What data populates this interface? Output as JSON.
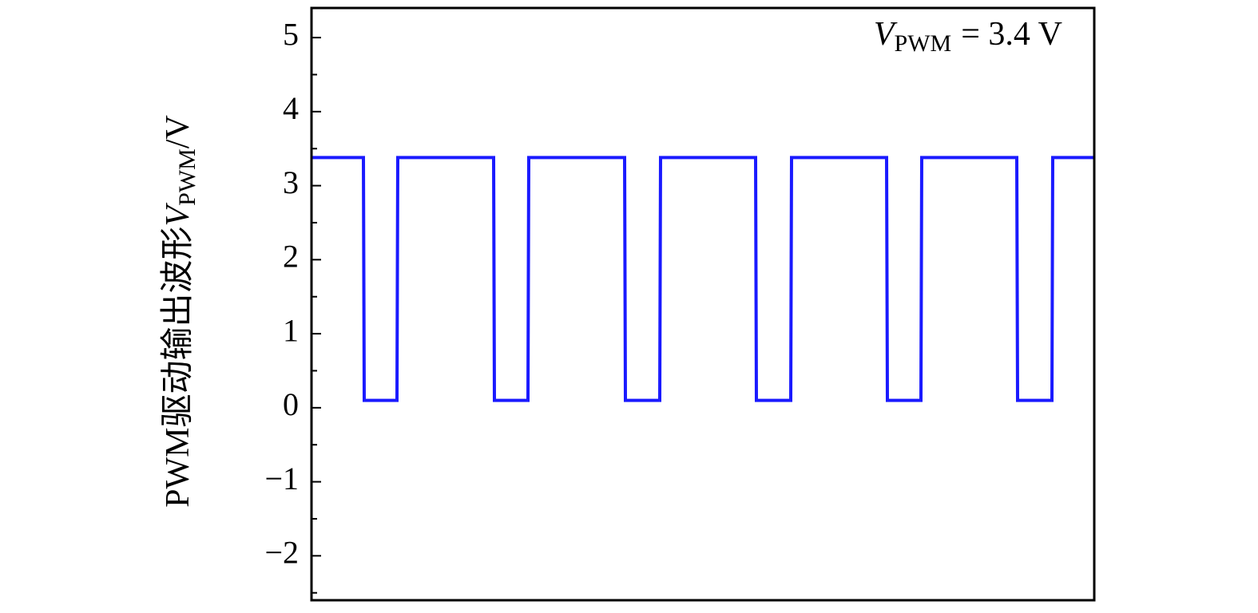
{
  "chart_data": {
    "type": "line",
    "y_label": {
      "text": "PWM驱动输出波形",
      "symbol": "V",
      "subscript": "PWM",
      "unit": "/V"
    },
    "annotation": {
      "symbol": "V",
      "subscript": "PWM",
      "text": "= 3.4 V"
    },
    "x": [
      0,
      65,
      66,
      107,
      108,
      228,
      229,
      271,
      272,
      392,
      393,
      436,
      437,
      556,
      557,
      600,
      601,
      720,
      721,
      763,
      764,
      883,
      884,
      927,
      928,
      980
    ],
    "series": [
      {
        "color": "#1a1aff",
        "values": [
          3.38,
          3.38,
          0.1,
          0.1,
          3.38,
          3.38,
          0.1,
          0.1,
          3.38,
          3.38,
          0.1,
          0.1,
          3.38,
          3.38,
          0.1,
          0.1,
          3.38,
          3.38,
          0.1,
          0.1,
          3.38,
          3.38,
          0.1,
          0.1,
          3.38,
          3.38
        ]
      }
    ],
    "xlim": [
      0,
      980
    ],
    "ylim": [
      -2.6,
      5.4
    ],
    "yticks": [
      {
        "value": -2,
        "label": "−2"
      },
      {
        "value": -1,
        "label": "−1"
      },
      0,
      1,
      2,
      3,
      4,
      5
    ],
    "minor_yticks": [
      -2.5,
      -1.5,
      -0.5,
      0.5,
      1.5,
      2.5,
      3.5,
      4.5
    ]
  }
}
